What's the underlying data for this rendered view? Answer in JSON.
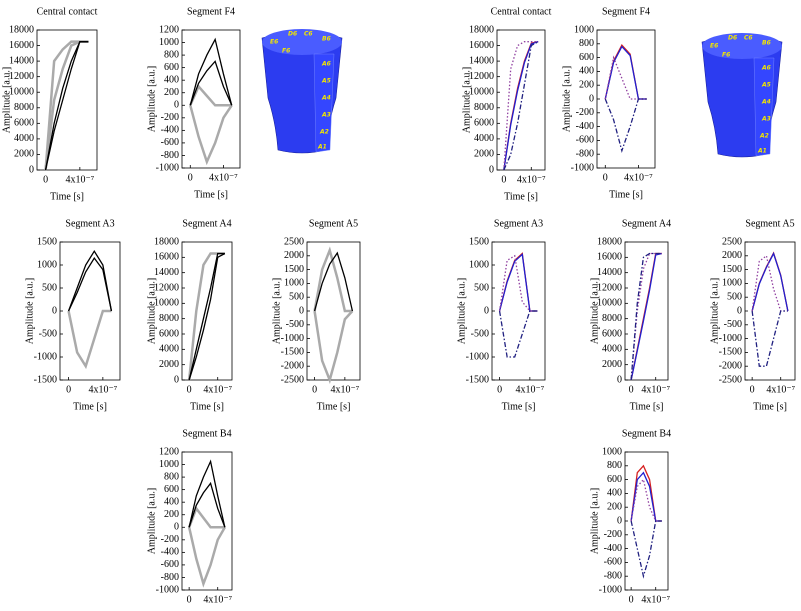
{
  "chart_data": [
    {
      "type": "line",
      "title": "Central contact",
      "ylabel": "Amplitude [a.u.]",
      "xlabel": "Time [s]",
      "x": [
        0,
        1e-07,
        2e-07,
        3e-07,
        4e-07,
        5e-07
      ],
      "xlim": [
        -1e-07,
        6e-07
      ],
      "xticks": [
        0,
        {
          "value": 4e-07,
          "label": "4x10⁻⁷"
        }
      ],
      "ylim": [
        0,
        18000
      ],
      "yticks": [
        0,
        2000,
        4000,
        6000,
        8000,
        10000,
        12000,
        14000,
        16000,
        18000
      ],
      "series": [
        {
          "color": "#aaaaaa",
          "values": [
            0,
            14000,
            15500,
            16500,
            16500,
            16500
          ]
        },
        {
          "color": "#aaaaaa",
          "values": [
            0,
            9000,
            13000,
            16000,
            16500,
            16500
          ]
        },
        {
          "color": "#000000",
          "values": [
            0,
            5000,
            9000,
            13000,
            16500,
            16500
          ]
        },
        {
          "color": "#000000",
          "values": [
            0,
            6000,
            10500,
            14000,
            16500,
            16500
          ]
        }
      ]
    },
    {
      "type": "line",
      "title": "Segment F4",
      "ylabel": "Amplitude [a.u.]",
      "xlabel": "Time [s]",
      "x": [
        0,
        1e-07,
        2e-07,
        3e-07,
        4e-07,
        5e-07
      ],
      "xlim": [
        -1e-07,
        6e-07
      ],
      "xticks": [
        0,
        {
          "value": 4e-07,
          "label": "4x10⁻⁷"
        }
      ],
      "ylim": [
        -1000,
        1200
      ],
      "yticks": [
        -1000,
        -800,
        -600,
        -400,
        -200,
        0,
        200,
        400,
        600,
        800,
        1000,
        1200
      ],
      "series": [
        {
          "color": "#aaaaaa",
          "values": [
            0,
            -500,
            -900,
            -600,
            -200,
            0
          ]
        },
        {
          "color": "#aaaaaa",
          "values": [
            0,
            300,
            150,
            0,
            0,
            0
          ]
        },
        {
          "color": "#000000",
          "values": [
            0,
            500,
            800,
            1050,
            500,
            0
          ]
        },
        {
          "color": "#000000",
          "values": [
            0,
            350,
            550,
            700,
            300,
            0
          ]
        }
      ]
    },
    {
      "type": "line",
      "title": "Segment A3",
      "ylabel": "Amplitude [a.u.]",
      "xlabel": "Time [s]",
      "x": [
        0,
        1e-07,
        2e-07,
        3e-07,
        4e-07,
        5e-07
      ],
      "xlim": [
        -1e-07,
        6e-07
      ],
      "xticks": [
        0,
        {
          "value": 4e-07,
          "label": "4x10⁻⁷"
        }
      ],
      "ylim": [
        -1500,
        1500
      ],
      "yticks": [
        -1500,
        -1000,
        -500,
        0,
        500,
        1000,
        1500
      ],
      "series": [
        {
          "color": "#aaaaaa",
          "values": [
            0,
            -900,
            -1200,
            -600,
            0,
            0
          ]
        },
        {
          "color": "#000000",
          "values": [
            0,
            500,
            1000,
            1300,
            1000,
            0
          ]
        },
        {
          "color": "#000000",
          "values": [
            0,
            400,
            850,
            1150,
            900,
            0
          ]
        }
      ]
    },
    {
      "type": "line",
      "title": "Segment A4",
      "ylabel": "Amplitude [a.u.]",
      "xlabel": "Time [s]",
      "x": [
        0,
        1e-07,
        2e-07,
        3e-07,
        4e-07,
        5e-07
      ],
      "xlim": [
        -1e-07,
        6e-07
      ],
      "xticks": [
        0,
        {
          "value": 4e-07,
          "label": "4x10⁻⁷"
        }
      ],
      "ylim": [
        0,
        18000
      ],
      "yticks": [
        0,
        2000,
        4000,
        6000,
        8000,
        10000,
        12000,
        14000,
        16000,
        18000
      ],
      "series": [
        {
          "color": "#aaaaaa",
          "values": [
            0,
            9000,
            15000,
            16500,
            16500,
            16500
          ]
        },
        {
          "color": "#000000",
          "values": [
            0,
            4000,
            8000,
            12000,
            16500,
            16500
          ]
        },
        {
          "color": "#000000",
          "values": [
            0,
            3000,
            6500,
            10500,
            16000,
            16500
          ]
        }
      ]
    },
    {
      "type": "line",
      "title": "Segment A5",
      "ylabel": "Amplitude [a.u.]",
      "xlabel": "Time [s]",
      "x": [
        0,
        1e-07,
        2e-07,
        3e-07,
        4e-07,
        5e-07
      ],
      "xlim": [
        -1e-07,
        6e-07
      ],
      "xticks": [
        0,
        {
          "value": 4e-07,
          "label": "4x10⁻⁷"
        }
      ],
      "ylim": [
        -2500,
        2500
      ],
      "yticks": [
        -2500,
        -2000,
        -1500,
        -1000,
        -500,
        0,
        500,
        1000,
        1500,
        2000,
        2500
      ],
      "series": [
        {
          "color": "#aaaaaa",
          "values": [
            0,
            -1800,
            -2500,
            -1500,
            -300,
            0
          ]
        },
        {
          "color": "#aaaaaa",
          "values": [
            0,
            1500,
            2200,
            1200,
            0,
            0
          ]
        },
        {
          "color": "#000000",
          "values": [
            0,
            1000,
            1700,
            2100,
            1200,
            0
          ]
        }
      ]
    },
    {
      "type": "line",
      "title": "Segment B4",
      "ylabel": "Amplitude [a.u.]",
      "x": [
        0,
        1e-07,
        2e-07,
        3e-07,
        4e-07,
        5e-07
      ],
      "xlim": [
        -1e-07,
        6e-07
      ],
      "xticks": [
        0,
        {
          "value": 4e-07,
          "label": "4x10⁻⁷"
        }
      ],
      "ylim": [
        -1000,
        1200
      ],
      "yticks": [
        -1000,
        -800,
        -600,
        -400,
        -200,
        0,
        200,
        400,
        600,
        800,
        1000,
        1200
      ],
      "series": [
        {
          "color": "#aaaaaa",
          "values": [
            0,
            -500,
            -900,
            -600,
            -200,
            0
          ]
        },
        {
          "color": "#aaaaaa",
          "values": [
            0,
            300,
            150,
            0,
            0,
            0
          ]
        },
        {
          "color": "#000000",
          "values": [
            0,
            500,
            800,
            1050,
            500,
            0
          ]
        },
        {
          "color": "#000000",
          "values": [
            0,
            350,
            550,
            700,
            300,
            0
          ]
        }
      ]
    },
    {
      "type": "line",
      "title": "Central contact",
      "ylabel": "Amplitude [a.u.]",
      "xlabel": "Time [s]",
      "x": [
        0,
        1e-07,
        2e-07,
        3e-07,
        4e-07,
        5e-07
      ],
      "xlim": [
        -1e-07,
        6e-07
      ],
      "xticks": [
        0,
        {
          "value": 4e-07,
          "label": "4x10⁻⁷"
        }
      ],
      "ylim": [
        0,
        18000
      ],
      "yticks": [
        0,
        2000,
        4000,
        6000,
        8000,
        10000,
        12000,
        14000,
        16000,
        18000
      ],
      "series": [
        {
          "color": "#d62020",
          "values": [
            0,
            6000,
            10500,
            14000,
            16300,
            16500
          ]
        },
        {
          "color": "#2020d0",
          "values": [
            0,
            5800,
            10200,
            13800,
            16200,
            16500
          ]
        },
        {
          "color": "#9040a0",
          "dash": "dot",
          "values": [
            0,
            13000,
            16000,
            16500,
            16500,
            16500
          ]
        },
        {
          "color": "#202080",
          "dash": "dashdot",
          "values": [
            0,
            2000,
            6000,
            11000,
            16000,
            16500
          ]
        }
      ]
    },
    {
      "type": "line",
      "title": "Segment F4",
      "ylabel": "Amplitude [a.u.]",
      "xlabel": "Time [s]",
      "x": [
        0,
        1e-07,
        2e-07,
        3e-07,
        4e-07,
        5e-07
      ],
      "xlim": [
        -1e-07,
        6e-07
      ],
      "xticks": [
        0,
        {
          "value": 4e-07,
          "label": "4x10⁻⁷"
        }
      ],
      "ylim": [
        -1000,
        1000
      ],
      "yticks": [
        -1000,
        -800,
        -600,
        -400,
        -200,
        0,
        200,
        400,
        600,
        800,
        1000
      ],
      "series": [
        {
          "color": "#d62020",
          "values": [
            0,
            550,
            780,
            650,
            0,
            0
          ]
        },
        {
          "color": "#2020d0",
          "values": [
            0,
            530,
            760,
            630,
            0,
            0
          ]
        },
        {
          "color": "#9040a0",
          "dash": "dot",
          "values": [
            0,
            600,
            300,
            0,
            0,
            0
          ]
        },
        {
          "color": "#202080",
          "dash": "dashdot",
          "values": [
            0,
            -300,
            -750,
            -400,
            0,
            0
          ]
        }
      ]
    },
    {
      "type": "line",
      "title": "Segment A3",
      "ylabel": "Amplitude [a.u.]",
      "xlabel": "Time [s]",
      "x": [
        0,
        1e-07,
        2e-07,
        3e-07,
        4e-07,
        5e-07
      ],
      "xlim": [
        -1e-07,
        6e-07
      ],
      "xticks": [
        0,
        {
          "value": 4e-07,
          "label": "4x10⁻⁷"
        }
      ],
      "ylim": [
        -1500,
        1500
      ],
      "yticks": [
        -1500,
        -1000,
        -500,
        0,
        500,
        1000,
        1500
      ],
      "series": [
        {
          "color": "#d62020",
          "values": [
            0,
            650,
            1100,
            1250,
            0,
            0
          ]
        },
        {
          "color": "#2020d0",
          "values": [
            0,
            630,
            1080,
            1230,
            0,
            0
          ]
        },
        {
          "color": "#9040a0",
          "dash": "dot",
          "values": [
            0,
            1100,
            1200,
            200,
            0,
            0
          ]
        },
        {
          "color": "#202080",
          "dash": "dashdot",
          "values": [
            0,
            -1000,
            -1000,
            -500,
            0,
            0
          ]
        }
      ]
    },
    {
      "type": "line",
      "title": "Segment A4",
      "ylabel": "Amplitude [a.u.]",
      "xlabel": "Time [s]",
      "x": [
        0,
        1e-07,
        2e-07,
        3e-07,
        4e-07,
        5e-07
      ],
      "xlim": [
        -1e-07,
        6e-07
      ],
      "xticks": [
        0,
        {
          "value": 4e-07,
          "label": "4x10⁻⁷"
        }
      ],
      "ylim": [
        0,
        18000
      ],
      "yticks": [
        0,
        2000,
        4000,
        6000,
        8000,
        10000,
        12000,
        14000,
        16000,
        18000
      ],
      "series": [
        {
          "color": "#d62020",
          "values": [
            0,
            4000,
            8000,
            12000,
            16500,
            16500
          ]
        },
        {
          "color": "#2020d0",
          "values": [
            0,
            3800,
            7700,
            11700,
            16300,
            16500
          ]
        },
        {
          "color": "#9040a0",
          "dash": "dot",
          "values": [
            0,
            9000,
            14500,
            16500,
            16500,
            16500
          ]
        },
        {
          "color": "#202080",
          "dash": "dashdot",
          "values": [
            0,
            10000,
            16000,
            16500,
            16500,
            16500
          ]
        }
      ]
    },
    {
      "type": "line",
      "title": "Segment A5",
      "ylabel": "Amplitude [a.u.]",
      "xlabel": "Time [s]",
      "x": [
        0,
        1e-07,
        2e-07,
        3e-07,
        4e-07,
        5e-07
      ],
      "xlim": [
        -1e-07,
        6e-07
      ],
      "xticks": [
        0,
        {
          "value": 4e-07,
          "label": "4x10⁻⁷"
        }
      ],
      "ylim": [
        -2500,
        2500
      ],
      "yticks": [
        -2500,
        -2000,
        -1500,
        -1000,
        -500,
        0,
        500,
        1000,
        1500,
        2000,
        2500
      ],
      "series": [
        {
          "color": "#d62020",
          "values": [
            0,
            1000,
            1600,
            2100,
            1300,
            0
          ]
        },
        {
          "color": "#2020d0",
          "values": [
            0,
            980,
            1580,
            2080,
            1280,
            0
          ]
        },
        {
          "color": "#9040a0",
          "dash": "dot",
          "values": [
            0,
            1800,
            2000,
            800,
            0,
            0
          ]
        },
        {
          "color": "#202080",
          "dash": "dashdot",
          "values": [
            0,
            -2000,
            -2000,
            -1000,
            0,
            0
          ]
        }
      ]
    },
    {
      "type": "line",
      "title": "Segment B4",
      "ylabel": "Amplitude [a.u.]",
      "x": [
        0,
        1e-07,
        2e-07,
        3e-07,
        4e-07,
        5e-07
      ],
      "xlim": [
        -1e-07,
        6e-07
      ],
      "xticks": [
        0,
        {
          "value": 4e-07,
          "label": "4x10⁻⁷"
        }
      ],
      "ylim": [
        -1000,
        1000
      ],
      "yticks": [
        -1000,
        -800,
        -600,
        -400,
        -200,
        0,
        200,
        400,
        600,
        800,
        1000
      ],
      "series": [
        {
          "color": "#d62020",
          "values": [
            0,
            700,
            800,
            600,
            0,
            0
          ]
        },
        {
          "color": "#2020d0",
          "values": [
            0,
            600,
            700,
            500,
            0,
            0
          ]
        },
        {
          "color": "#9040a0",
          "dash": "dot",
          "values": [
            0,
            500,
            600,
            200,
            0,
            0
          ]
        },
        {
          "color": "#202080",
          "dash": "dashdot",
          "values": [
            0,
            -400,
            -800,
            -500,
            0,
            0
          ]
        }
      ]
    }
  ],
  "detector_labels": [
    "E6",
    "D6",
    "C6",
    "B6",
    "F6",
    "A6",
    "A5",
    "A4",
    "A3",
    "A2",
    "A1"
  ]
}
